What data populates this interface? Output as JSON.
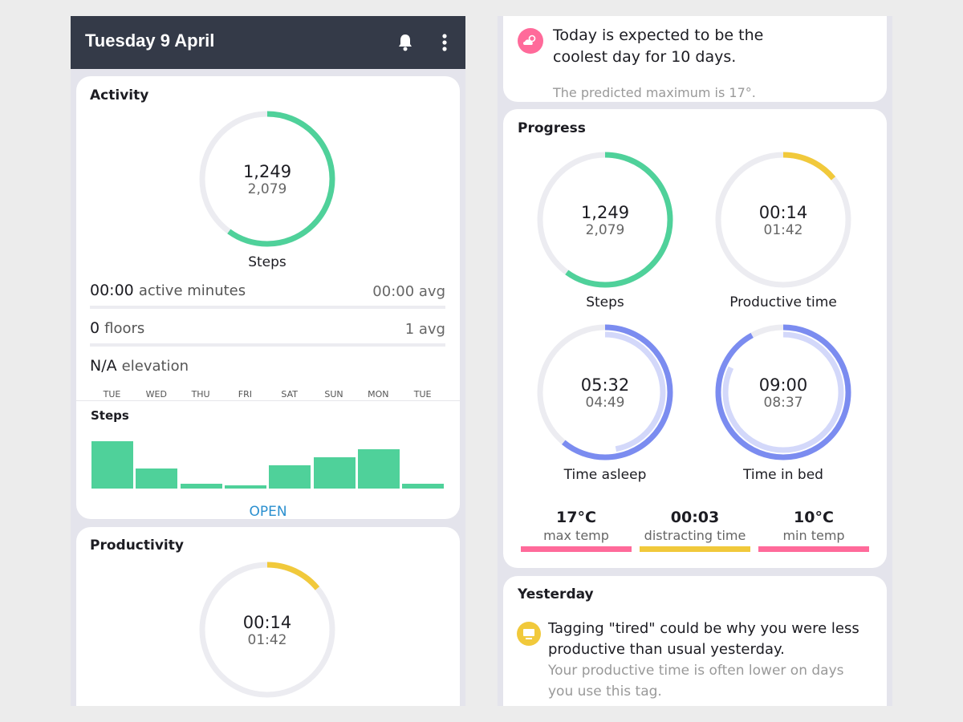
{
  "header": {
    "title": "Tuesday 9 April",
    "bell_icon": "bell-icon",
    "menu_icon": "more-vertical-icon"
  },
  "colors": {
    "green": "#4fd19a",
    "yellow": "#f1c93b",
    "blue": "#7b8cf0",
    "light_blue": "#d3d8fa",
    "pink": "#ff6a9a",
    "track": "#ececf1",
    "header": "#343a48",
    "link": "#2a8fcf"
  },
  "activity": {
    "title": "Activity",
    "steps": "1,249",
    "steps_goal": "2,079",
    "steps_label": "Steps",
    "steps_fraction": 0.6,
    "active_minutes": {
      "value": "00:00",
      "unit": "active minutes",
      "avg": "00:00 avg"
    },
    "floors": {
      "value": "0",
      "unit": "floors",
      "avg": "1 avg"
    },
    "elevation": {
      "value": "N/A",
      "unit": "elevation"
    },
    "open_label": "OPEN"
  },
  "chart_data": {
    "type": "bar",
    "title": "Steps",
    "categories": [
      "TUE",
      "WED",
      "THU",
      "FRI",
      "SAT",
      "SUN",
      "MON",
      "TUE"
    ],
    "values": [
      100,
      42,
      10,
      6,
      50,
      66,
      83,
      10
    ]
  },
  "productivity": {
    "title": "Productivity",
    "value": "00:14",
    "goal": "01:42",
    "fraction": 0.14
  },
  "weather": {
    "icon": "weather-partly-cloudy-icon",
    "headline": "Today is expected to be the coolest day for 10 days.",
    "detail": "The predicted maximum is 17°."
  },
  "progress": {
    "title": "Progress",
    "rings": [
      {
        "label": "Steps",
        "value": "1,249",
        "goal": "2,079",
        "outer": 0.6,
        "color": "#4fd19a"
      },
      {
        "label": "Productive time",
        "value": "00:14",
        "goal": "01:42",
        "outer": 0.14,
        "color": "#f1c93b"
      },
      {
        "label": "Time asleep",
        "value": "05:32",
        "goal": "04:49",
        "outer": 0.61,
        "inner": 0.47,
        "color": "#7b8cf0"
      },
      {
        "label": "Time in bed",
        "value": "09:00",
        "goal": "08:37",
        "outer": 0.92,
        "inner": 0.82,
        "color": "#7b8cf0"
      }
    ],
    "stats": [
      {
        "value": "17°C",
        "label": "max temp",
        "color": "#ff6a9a"
      },
      {
        "value": "00:03",
        "label": "distracting time",
        "color": "#f1c93b"
      },
      {
        "value": "10°C",
        "label": "min temp",
        "color": "#ff6a9a"
      }
    ]
  },
  "yesterday": {
    "title": "Yesterday",
    "icon": "monitor-icon",
    "headline": "Tagging \"tired\" could be why you were less productive than usual yesterday.",
    "detail": "Your productive time is often lower on days you use this tag."
  }
}
